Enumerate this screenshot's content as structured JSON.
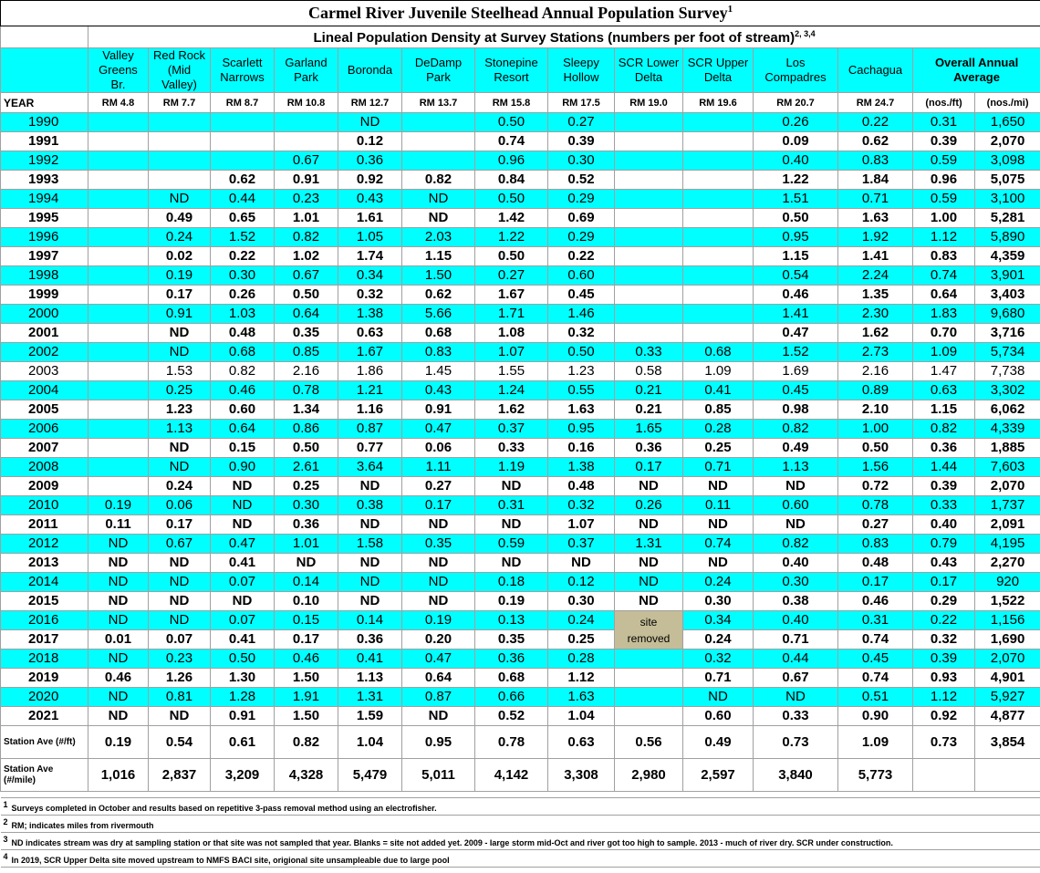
{
  "title": "Carmel River Juvenile Steelhead Annual Population Survey",
  "title_note": "1",
  "subtitle": "Lineal Population Density at Survey Stations (numbers per foot of stream)",
  "subtitle_note": "2, 3,4",
  "stations": [
    "Valley Greens Br.",
    "Red Rock (Mid Valley)",
    "Scarlett Narrows",
    "Garland Park",
    "Boronda",
    "DeDamp Park",
    "Stonepine Resort",
    "Sleepy Hollow",
    "SCR Lower Delta",
    "SCR Upper Delta",
    "Los Compadres",
    "Cachagua"
  ],
  "overall_header": "Overall Annual Average",
  "year_label": "YEAR",
  "rm": [
    "RM 4.8",
    "RM 7.7",
    "RM 8.7",
    "RM 10.8",
    "RM 12.7",
    "RM 13.7",
    "RM 15.8",
    "RM 17.5",
    "RM 19.0",
    "RM 19.6",
    "RM 20.7",
    "RM 24.7",
    "(nos./ft)",
    "(nos./mi)"
  ],
  "rows": [
    {
      "year": "1990",
      "cells": [
        null,
        null,
        null,
        null,
        "ND",
        null,
        "0.50",
        "0.27",
        null,
        null,
        "0.26",
        "0.22",
        "0.31",
        "1,650"
      ]
    },
    {
      "year": "1991",
      "cells": [
        null,
        null,
        null,
        null,
        "0.12",
        null,
        "0.74",
        "0.39",
        null,
        null,
        "0.09",
        "0.62",
        "0.39",
        "2,070"
      ]
    },
    {
      "year": "1992",
      "cells": [
        null,
        null,
        null,
        "0.67",
        "0.36",
        null,
        "0.96",
        "0.30",
        null,
        null,
        "0.40",
        "0.83",
        "0.59",
        "3,098"
      ]
    },
    {
      "year": "1993",
      "cells": [
        null,
        null,
        "0.62",
        "0.91",
        "0.92",
        "0.82",
        "0.84",
        "0.52",
        null,
        null,
        "1.22",
        "1.84",
        "0.96",
        "5,075"
      ]
    },
    {
      "year": "1994",
      "cells": [
        null,
        "ND",
        "0.44",
        "0.23",
        "0.43",
        "ND",
        "0.50",
        "0.29",
        null,
        null,
        "1.51",
        "0.71",
        "0.59",
        "3,100"
      ]
    },
    {
      "year": "1995",
      "cells": [
        null,
        "0.49",
        "0.65",
        "1.01",
        "1.61",
        "ND",
        "1.42",
        "0.69",
        null,
        null,
        "0.50",
        "1.63",
        "1.00",
        "5,281"
      ]
    },
    {
      "year": "1996",
      "cells": [
        null,
        "0.24",
        "1.52",
        "0.82",
        "1.05",
        "2.03",
        "1.22",
        "0.29",
        null,
        null,
        "0.95",
        "1.92",
        "1.12",
        "5,890"
      ]
    },
    {
      "year": "1997",
      "cells": [
        null,
        "0.02",
        "0.22",
        "1.02",
        "1.74",
        "1.15",
        "0.50",
        "0.22",
        null,
        null,
        "1.15",
        "1.41",
        "0.83",
        "4,359"
      ]
    },
    {
      "year": "1998",
      "cells": [
        null,
        "0.19",
        "0.30",
        "0.67",
        "0.34",
        "1.50",
        "0.27",
        "0.60",
        null,
        null,
        "0.54",
        "2.24",
        "0.74",
        "3,901"
      ]
    },
    {
      "year": "1999",
      "cells": [
        null,
        "0.17",
        "0.26",
        "0.50",
        "0.32",
        "0.62",
        "1.67",
        "0.45",
        null,
        null,
        "0.46",
        "1.35",
        "0.64",
        "3,403"
      ]
    },
    {
      "year": "2000",
      "cells": [
        null,
        "0.91",
        "1.03",
        "0.64",
        "1.38",
        "5.66",
        "1.71",
        "1.46",
        null,
        null,
        "1.41",
        "2.30",
        "1.83",
        "9,680"
      ]
    },
    {
      "year": "2001",
      "cells": [
        null,
        "ND",
        "0.48",
        "0.35",
        "0.63",
        "0.68",
        "1.08",
        "0.32",
        null,
        null,
        "0.47",
        "1.62",
        "0.70",
        "3,716"
      ]
    },
    {
      "year": "2002",
      "cells": [
        null,
        "ND",
        "0.68",
        "0.85",
        "1.67",
        "0.83",
        "1.07",
        "0.50",
        "0.33",
        "0.68",
        "1.52",
        "2.73",
        "1.09",
        "5,734"
      ]
    },
    {
      "year": "2003",
      "cells": [
        null,
        "1.53",
        "0.82",
        "2.16",
        "1.86",
        "1.45",
        "1.55",
        "1.23",
        "0.58",
        "1.09",
        "1.69",
        "2.16",
        "1.47",
        "7,738"
      ]
    },
    {
      "year": "2004",
      "cells": [
        null,
        "0.25",
        "0.46",
        "0.78",
        "1.21",
        "0.43",
        "1.24",
        "0.55",
        "0.21",
        "0.41",
        "0.45",
        "0.89",
        "0.63",
        "3,302"
      ]
    },
    {
      "year": "2005",
      "cells": [
        null,
        "1.23",
        "0.60",
        "1.34",
        "1.16",
        "0.91",
        "1.62",
        "1.63",
        "0.21",
        "0.85",
        "0.98",
        "2.10",
        "1.15",
        "6,062"
      ]
    },
    {
      "year": "2006",
      "cells": [
        null,
        "1.13",
        "0.64",
        "0.86",
        "0.87",
        "0.47",
        "0.37",
        "0.95",
        "1.65",
        "0.28",
        "0.82",
        "1.00",
        "0.82",
        "4,339"
      ]
    },
    {
      "year": "2007",
      "cells": [
        null,
        "ND",
        "0.15",
        "0.50",
        "0.77",
        "0.06",
        "0.33",
        "0.16",
        "0.36",
        "0.25",
        "0.49",
        "0.50",
        "0.36",
        "1,885"
      ]
    },
    {
      "year": "2008",
      "cells": [
        null,
        "ND",
        "0.90",
        "2.61",
        "3.64",
        "1.11",
        "1.19",
        "1.38",
        "0.17",
        "0.71",
        "1.13",
        "1.56",
        "1.44",
        "7,603"
      ]
    },
    {
      "year": "2009",
      "cells": [
        null,
        "0.24",
        "ND",
        "0.25",
        "ND",
        "0.27",
        "ND",
        "0.48",
        "ND",
        "ND",
        "ND",
        "0.72",
        "0.39",
        "2,070"
      ]
    },
    {
      "year": "2010",
      "cells": [
        "0.19",
        "0.06",
        "ND",
        "0.30",
        "0.38",
        "0.17",
        "0.31",
        "0.32",
        "0.26",
        "0.11",
        "0.60",
        "0.78",
        "0.33",
        "1,737"
      ]
    },
    {
      "year": "2011",
      "cells": [
        "0.11",
        "0.17",
        "ND",
        "0.36",
        "ND",
        "ND",
        "ND",
        "1.07",
        "ND",
        "ND",
        "ND",
        "0.27",
        "0.40",
        "2,091"
      ]
    },
    {
      "year": "2012",
      "cells": [
        "ND",
        "0.67",
        "0.47",
        "1.01",
        "1.58",
        "0.35",
        "0.59",
        "0.37",
        "1.31",
        "0.74",
        "0.82",
        "0.83",
        "0.79",
        "4,195"
      ]
    },
    {
      "year": "2013",
      "cells": [
        "ND",
        "ND",
        "0.41",
        "ND",
        "ND",
        "ND",
        "ND",
        "ND",
        "ND",
        "ND",
        "0.40",
        "0.48",
        "0.43",
        "2,270"
      ]
    },
    {
      "year": "2014",
      "cells": [
        "ND",
        "ND",
        "0.07",
        "0.14",
        "ND",
        "ND",
        "0.18",
        "0.12",
        "ND",
        "0.24",
        "0.30",
        "0.17",
        "0.17",
        "920"
      ]
    },
    {
      "year": "2015",
      "cells": [
        "ND",
        "ND",
        "ND",
        "0.10",
        "ND",
        "ND",
        "0.19",
        "0.30",
        "ND",
        "0.30",
        "0.38",
        "0.46",
        "0.29",
        "1,522"
      ]
    },
    {
      "year": "2016",
      "cells": [
        "ND",
        "ND",
        "0.07",
        "0.15",
        "0.14",
        "0.19",
        "0.13",
        "0.24",
        "site removed",
        "0.34",
        "0.40",
        "0.31",
        "0.22",
        "1,156"
      ]
    },
    {
      "year": "2017",
      "cells": [
        "0.01",
        "0.07",
        "0.41",
        "0.17",
        "0.36",
        "0.20",
        "0.35",
        "0.25",
        null,
        "0.24",
        "0.71",
        "0.74",
        "0.32",
        "1,690"
      ]
    },
    {
      "year": "2018",
      "cells": [
        "ND",
        "0.23",
        "0.50",
        "0.46",
        "0.41",
        "0.47",
        "0.36",
        "0.28",
        null,
        "0.32",
        "0.44",
        "0.45",
        "0.39",
        "2,070"
      ]
    },
    {
      "year": "2019",
      "cells": [
        "0.46",
        "1.26",
        "1.30",
        "1.50",
        "1.13",
        "0.64",
        "0.68",
        "1.12",
        null,
        "0.71",
        "0.67",
        "0.74",
        "0.93",
        "4,901"
      ]
    },
    {
      "year": "2020",
      "cells": [
        "ND",
        "0.81",
        "1.28",
        "1.91",
        "1.31",
        "0.87",
        "0.66",
        "1.63",
        null,
        "ND",
        "ND",
        "0.51",
        "1.12",
        "5,927"
      ]
    },
    {
      "year": "2021",
      "cells": [
        "ND",
        "ND",
        "0.91",
        "1.50",
        "1.59",
        "ND",
        "0.52",
        "1.04",
        null,
        "0.60",
        "0.33",
        "0.90",
        "0.92",
        "4,877"
      ]
    }
  ],
  "station_ave": [
    {
      "label": "Station Ave (#/ft)",
      "values": [
        "0.19",
        "0.54",
        "0.61",
        "0.82",
        "1.04",
        "0.95",
        "0.78",
        "0.63",
        "0.56",
        "0.49",
        "0.73",
        "1.09",
        "0.73",
        "3,854"
      ]
    },
    {
      "label": "Station Ave (#/mile)",
      "values": [
        "1,016",
        "2,837",
        "3,209",
        "4,328",
        "5,479",
        "5,011",
        "4,142",
        "3,308",
        "2,980",
        "2,597",
        "3,840",
        "5,773",
        null,
        null
      ]
    }
  ],
  "notes": [
    {
      "mark": "1",
      "text": "Surveys completed in October and results based on repetitive 3-pass removal method using an electrofisher."
    },
    {
      "mark": "2",
      "text": "RM; indicates miles from rivermouth"
    },
    {
      "mark": "3",
      "text": "ND indicates stream was dry at sampling station or that site was not sampled that year.  Blanks = site not added yet. 2009 - large storm mid-Oct and river got too high to sample. 2013 - much of river dry. SCR under construction."
    },
    {
      "mark": "4",
      "text": "In 2019,  SCR Upper Delta site moved upstream to NMFS BACI site,  origional site unsampleable due to large pool"
    }
  ]
}
